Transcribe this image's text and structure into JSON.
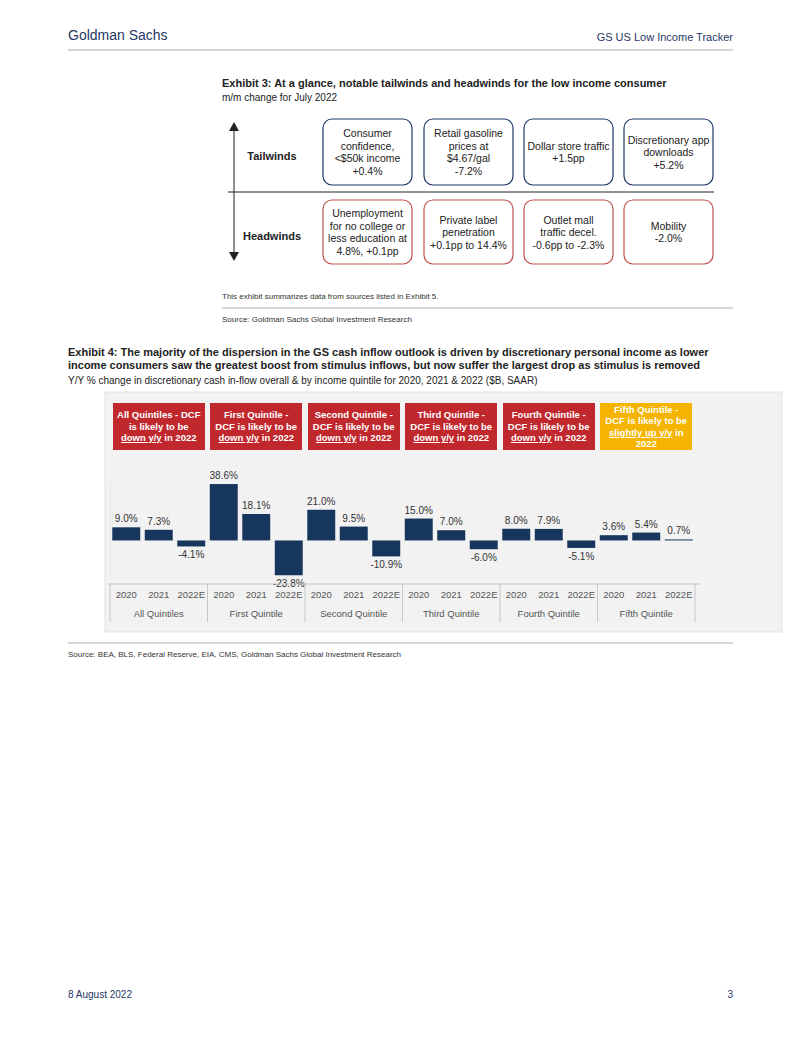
{
  "header": {
    "left": "Goldman Sachs",
    "right": "GS US Low Income Tracker"
  },
  "exhibit3": {
    "title": "Exhibit 3: At a glance, notable tailwinds and headwinds for the low income consumer",
    "subtitle": "m/m change for July 2022",
    "tailwinds_label": "Tailwinds",
    "headwinds_label": "Headwinds",
    "tailwinds": [
      {
        "lines": [
          "Consumer",
          "confidence,",
          "<$50k income",
          "+0.4%"
        ]
      },
      {
        "lines": [
          "Retail gasoline",
          "prices at",
          "$4.67/gal",
          "-7.2%"
        ]
      },
      {
        "lines": [
          "Dollar store traffic",
          "+1.5pp"
        ]
      },
      {
        "lines": [
          "Discretionary app",
          "downloads",
          "+5.2%"
        ]
      }
    ],
    "headwinds": [
      {
        "lines": [
          "Unemployment",
          "for no college or",
          "less education at",
          "4.8%, +0.1pp"
        ]
      },
      {
        "lines": [
          "Private label",
          "penetration",
          "+0.1pp to 14.4%"
        ]
      },
      {
        "lines": [
          "Outlet mall",
          "traffic decel.",
          "-0.6pp to -2.3%"
        ]
      },
      {
        "lines": [
          "Mobility",
          "-2.0%"
        ]
      }
    ],
    "note": "This exhibit summarizes data from sources listed in Exhibit 5.",
    "source": "Source: Goldman Sachs Global Investment Research"
  },
  "chart_data": {
    "type": "bar",
    "title": "Exhibit 4: The majority of the dispersion in the GS cash inflow outlook is driven by discretionary personal income as lower income consumers saw the greatest boost from stimulus inflows, but now suffer the largest drop as stimulus is removed",
    "subtitle": "Y/Y % change in discretionary cash in-flow overall & by income quintile for 2020, 2021 & 2022 ($B, SAAR)",
    "categories": [
      "2020",
      "2021",
      "2022E",
      "2020",
      "2021",
      "2022E",
      "2020",
      "2021",
      "2022E",
      "2020",
      "2021",
      "2022E",
      "2020",
      "2021",
      "2022E",
      "2020",
      "2021",
      "2022E"
    ],
    "groups": [
      "All Quintiles",
      "First Quintile",
      "Second Quintile",
      "Third Quintile",
      "Fourth Quintile",
      "Fifth Quintile"
    ],
    "values": [
      9.0,
      7.3,
      -4.1,
      38.6,
      18.1,
      -23.8,
      21.0,
      9.5,
      -10.9,
      15.0,
      7.0,
      -6.0,
      8.0,
      7.9,
      -5.1,
      3.6,
      5.4,
      0.7
    ],
    "value_labels": [
      "9.0%",
      "7.3%",
      "-4.1%",
      "38.6%",
      "18.1%",
      "-23.8%",
      "21.0%",
      "9.5%",
      "-10.9%",
      "15.0%",
      "7.0%",
      "-6.0%",
      "8.0%",
      "7.9%",
      "-5.1%",
      "3.6%",
      "5.4%",
      "0.7%"
    ],
    "color": "#17365d",
    "data_labels": true,
    "tick_labels": "x",
    "ylim": [
      -25,
      40
    ],
    "annotations": [
      {
        "pre": "All Quintiles - DCF is likely to be",
        "emph": "down y/y",
        "post": "in 2022",
        "color": "#c0282d"
      },
      {
        "pre": "First Quintile - DCF is likely to be",
        "emph": "down y/y",
        "post": "in 2022",
        "color": "#c0282d"
      },
      {
        "pre": "Second Quintile - DCF is likely to be",
        "emph": "down y/y",
        "post": "in 2022",
        "color": "#c0282d"
      },
      {
        "pre": "Third Quintile - DCF is likely to be",
        "emph": "down y/y",
        "post": "in 2022",
        "color": "#c0282d"
      },
      {
        "pre": "Fourth Quintile - DCF is likely to be",
        "emph": "down y/y",
        "post": "in 2022",
        "color": "#c0282d"
      },
      {
        "pre": "Fifth Quintile - DCF is likely to be",
        "emph": "slightly up y/y",
        "post": "in 2022",
        "color": "#f5b400"
      }
    ],
    "source": "Source: BEA, BLS, Federal Reserve, EIA, CMS, Goldman Sachs Global Investment Research"
  },
  "footer": {
    "date": "8 August 2022",
    "page": "3"
  }
}
